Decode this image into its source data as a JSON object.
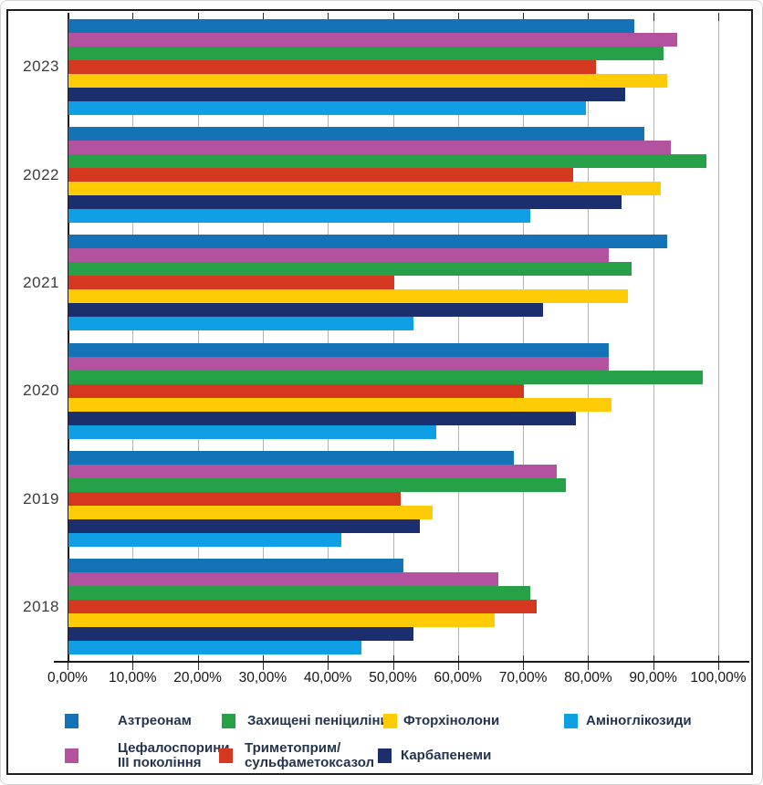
{
  "chart_data": {
    "type": "bar",
    "orientation": "horizontal",
    "title": "",
    "categories": [
      "2023",
      "2022",
      "2021",
      "2020",
      "2019",
      "2018"
    ],
    "series": [
      {
        "name": "Азтреонам",
        "color": "#1472b7",
        "values": [
          87,
          88.5,
          92,
          83,
          68.5,
          51.5
        ]
      },
      {
        "name": "Цефалоспорини ІІІ покоління",
        "color": "#b3539f",
        "values": [
          93.5,
          92.5,
          83,
          83,
          75,
          66
        ]
      },
      {
        "name": "Захищені пеніциліни",
        "color": "#26a147",
        "values": [
          91.5,
          98,
          86.5,
          97.5,
          76.5,
          71
        ]
      },
      {
        "name": "Триметоприм/сульфаметоксазол",
        "color": "#d5371f",
        "values": [
          81,
          77.5,
          50,
          70,
          51,
          72
        ]
      },
      {
        "name": "Фторхінолони",
        "color": "#ffcb05",
        "values": [
          92,
          91,
          86,
          83.5,
          56,
          65.5
        ]
      },
      {
        "name": "Карбапенеми",
        "color": "#1b2f6e",
        "values": [
          85.5,
          85,
          73,
          78,
          54,
          53
        ]
      },
      {
        "name": "Аміноглікозиди",
        "color": "#0f9fe4",
        "values": [
          79.5,
          71,
          53,
          56.5,
          42,
          45
        ]
      }
    ],
    "x_ticks": [
      "0,00%",
      "10,00%",
      "20,00%",
      "30,00%",
      "40,00%",
      "50,00%",
      "60,00%",
      "70,00%",
      "80,00%",
      "90,00%",
      "100,00%"
    ],
    "xlim": [
      0,
      100
    ],
    "grid": true,
    "legend_position": "bottom"
  },
  "legend": {
    "row1": [
      {
        "series": 0,
        "lines": [
          "Азтреонам"
        ]
      },
      {
        "series": 2,
        "lines": [
          "Захищені пеніциліни"
        ]
      },
      {
        "series": 4,
        "lines": [
          "Фторхінолони"
        ]
      },
      {
        "series": 6,
        "lines": [
          "Аміноглікозиди"
        ]
      }
    ],
    "row2": [
      {
        "series": 1,
        "lines": [
          "Цефалоспорини",
          "ІІІ покоління"
        ]
      },
      {
        "series": 3,
        "lines": [
          "Триметоприм/",
          "сульфаметоксазол"
        ]
      },
      {
        "series": 5,
        "lines": [
          "Карбапенеми"
        ]
      }
    ]
  }
}
